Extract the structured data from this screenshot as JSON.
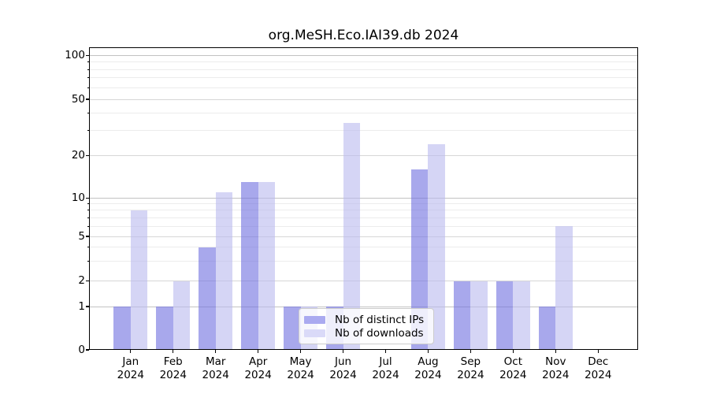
{
  "chart_data": {
    "type": "bar",
    "title": "org.MeSH.Eco.IAI39.db 2024",
    "categories": [
      "Jan 2024",
      "Feb 2024",
      "Mar 2024",
      "Apr 2024",
      "May 2024",
      "Jun 2024",
      "Jul 2024",
      "Aug 2024",
      "Sep 2024",
      "Oct 2024",
      "Nov 2024",
      "Dec 2024"
    ],
    "series": [
      {
        "name": "Nb of distinct IPs",
        "color": "rgba(110,110,224,0.6)",
        "legend_color": "#aaaaf0",
        "values": [
          1,
          1,
          4,
          13,
          1,
          1,
          0,
          16,
          2,
          2,
          1,
          0
        ]
      },
      {
        "name": "Nb of downloads",
        "color": "rgba(185,185,239,0.6)",
        "legend_color": "#dadaf8",
        "values": [
          8,
          2,
          11,
          13,
          1,
          34,
          0,
          24,
          2,
          2,
          6,
          0
        ]
      }
    ],
    "y_axis": {
      "scale": "log-like",
      "ticks": [
        0,
        1,
        2,
        5,
        10,
        20,
        50,
        100
      ],
      "minor_ticks": [
        3,
        4,
        6,
        7,
        8,
        9,
        30,
        40,
        60,
        70,
        80,
        90
      ],
      "ylim": [
        0,
        120
      ]
    },
    "legend_position": "lower center inside plot",
    "grid": true,
    "colors": {
      "grid_decade": "#c2c2c2",
      "grid_labeled": "#d6d6d6",
      "grid_minor": "#ececec",
      "spine": "#000000",
      "background": "#ffffff",
      "text": "#000000"
    }
  }
}
